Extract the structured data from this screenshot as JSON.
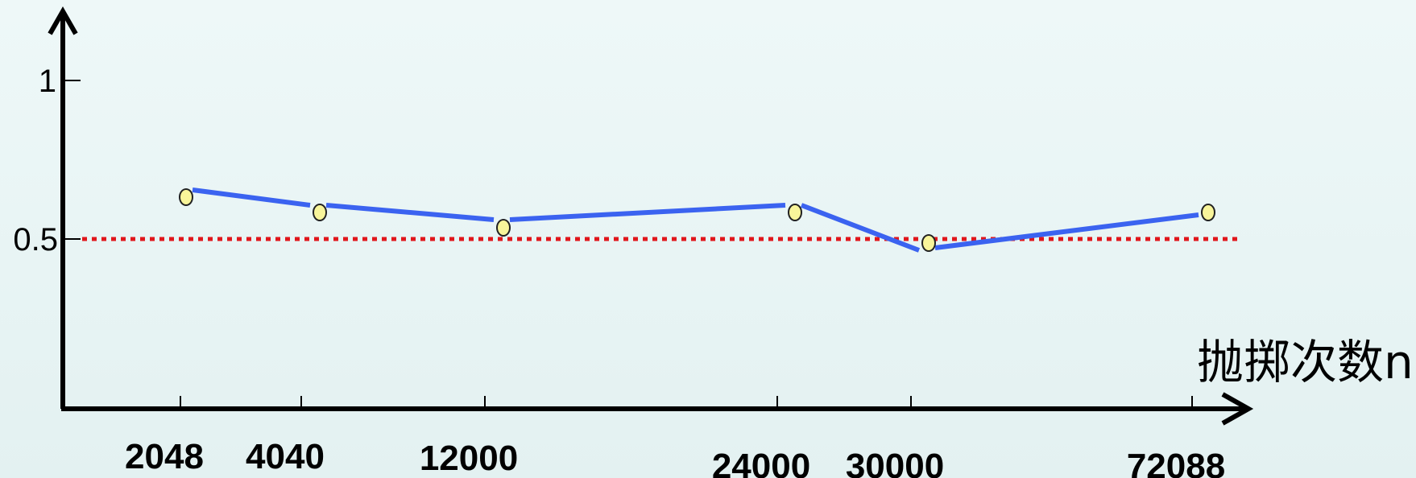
{
  "chart_data": {
    "type": "line",
    "title": "",
    "xlabel": "抛掷次数n",
    "ylabel": "",
    "categories": [
      "2048",
      "4040",
      "12000",
      "24000",
      "30000",
      "72088"
    ],
    "series": [
      {
        "values": [
          0.518,
          0.5069,
          0.5016,
          0.5005,
          0.4996,
          0.5005
        ]
      }
    ],
    "reference_line": {
      "y": 0.5,
      "style": "dotted",
      "color": "#e0161b"
    },
    "y_ticks": [
      {
        "value": 0.5,
        "label": "0.5"
      },
      {
        "value": 1,
        "label": "1"
      }
    ],
    "colors": {
      "line": "#3b63f0",
      "marker_fill": "#f8f59a",
      "marker_stroke": "#222222",
      "axis": "#000000"
    },
    "grid": false
  }
}
